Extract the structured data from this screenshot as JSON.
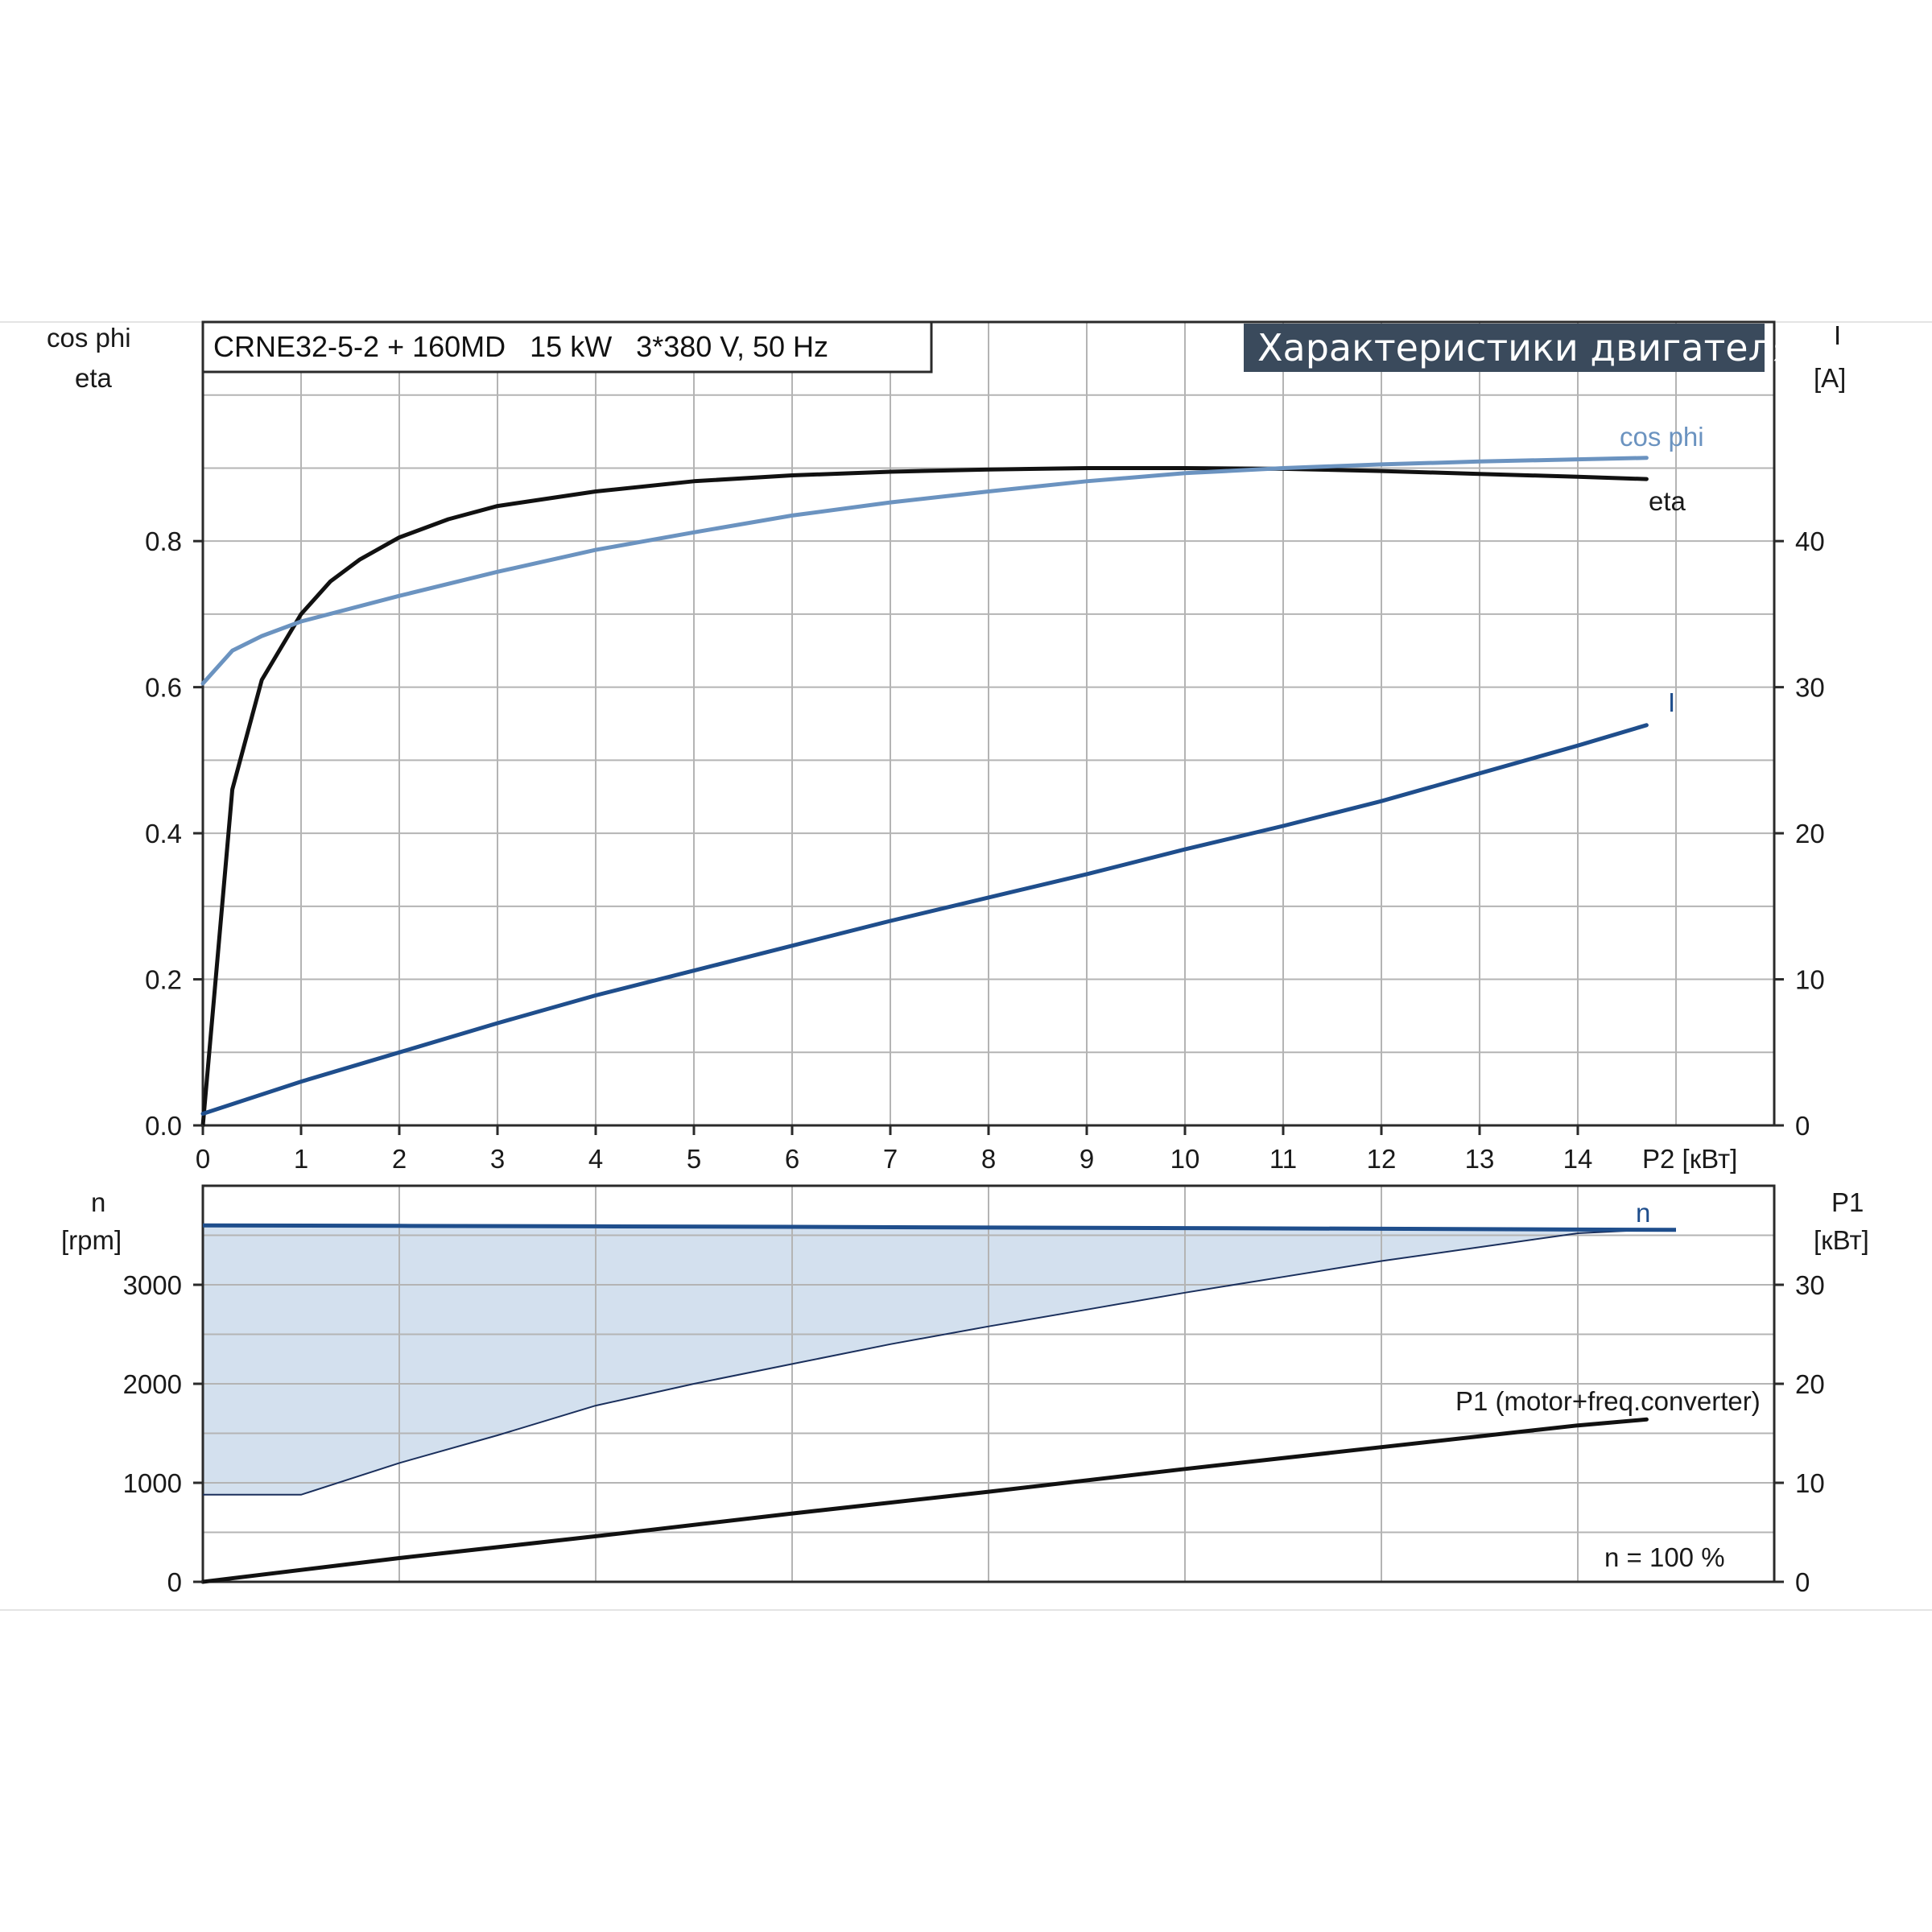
{
  "header": {
    "model": "CRNE32-5-2 + 160MD   15 kW   3*380 V, 50 Hz",
    "title": "Характеристики двигателя"
  },
  "colors": {
    "eta": "#111111",
    "cos_phi": "#6b93c0",
    "current": "#1f4e8c",
    "speed": "#1f4e8c",
    "p1": "#111111",
    "fill": "#d3e0ee",
    "grid": "#b4b4b4",
    "badge": "#3a4a5c"
  },
  "chart_data": [
    {
      "type": "line",
      "panel": "top",
      "xlabel": "P2 [кВт]",
      "xlim": [
        0,
        16
      ],
      "x_ticks": [
        "0",
        "1",
        "2",
        "3",
        "4",
        "5",
        "6",
        "7",
        "8",
        "9",
        "10",
        "11",
        "12",
        "13",
        "14"
      ],
      "y_left_label": [
        "cos phi",
        "eta"
      ],
      "y_left_lim": [
        0,
        1.1
      ],
      "y_left_ticks": [
        "0.0",
        "0.2",
        "0.4",
        "0.6",
        "0.8"
      ],
      "y_right_label": [
        "I",
        "[A]"
      ],
      "y_right_lim": [
        0,
        55
      ],
      "y_right_ticks": [
        "0",
        "10",
        "20",
        "30",
        "40"
      ],
      "grid": true,
      "series": [
        {
          "name": "eta",
          "axis": "left",
          "points": [
            [
              0,
              0
            ],
            [
              0.3,
              0.46
            ],
            [
              0.6,
              0.61
            ],
            [
              1,
              0.7
            ],
            [
              1.3,
              0.745
            ],
            [
              1.6,
              0.775
            ],
            [
              2,
              0.805
            ],
            [
              2.5,
              0.83
            ],
            [
              3,
              0.848
            ],
            [
              4,
              0.868
            ],
            [
              5,
              0.882
            ],
            [
              6,
              0.89
            ],
            [
              7,
              0.895
            ],
            [
              8,
              0.898
            ],
            [
              9,
              0.9
            ],
            [
              10,
              0.9
            ],
            [
              11,
              0.899
            ],
            [
              12,
              0.896
            ],
            [
              13,
              0.892
            ],
            [
              14,
              0.888
            ],
            [
              14.7,
              0.885
            ]
          ]
        },
        {
          "name": "cos phi",
          "axis": "left",
          "points": [
            [
              0,
              0.605
            ],
            [
              0.3,
              0.65
            ],
            [
              0.6,
              0.67
            ],
            [
              1,
              0.69
            ],
            [
              2,
              0.725
            ],
            [
              3,
              0.758
            ],
            [
              4,
              0.788
            ],
            [
              5,
              0.812
            ],
            [
              6,
              0.835
            ],
            [
              7,
              0.853
            ],
            [
              8,
              0.868
            ],
            [
              9,
              0.882
            ],
            [
              10,
              0.893
            ],
            [
              11,
              0.9
            ],
            [
              12,
              0.905
            ],
            [
              13,
              0.909
            ],
            [
              14,
              0.912
            ],
            [
              14.7,
              0.914
            ]
          ]
        },
        {
          "name": "I",
          "axis": "right",
          "points": [
            [
              0,
              0.8
            ],
            [
              1,
              3
            ],
            [
              2,
              5
            ],
            [
              3,
              7
            ],
            [
              4,
              8.9
            ],
            [
              5,
              10.6
            ],
            [
              6,
              12.3
            ],
            [
              7,
              14
            ],
            [
              8,
              15.6
            ],
            [
              9,
              17.2
            ],
            [
              10,
              18.9
            ],
            [
              11,
              20.5
            ],
            [
              12,
              22.2
            ],
            [
              13,
              24.1
            ],
            [
              14,
              26
            ],
            [
              14.7,
              27.4
            ]
          ]
        }
      ]
    },
    {
      "type": "area",
      "panel": "bottom",
      "xlim": [
        0,
        16
      ],
      "y_left_label": [
        "n",
        "[rpm]"
      ],
      "y_left_lim": [
        0,
        4000
      ],
      "y_left_ticks": [
        "0",
        "1000",
        "2000",
        "3000"
      ],
      "y_right_label": [
        "P1",
        "[кВт]"
      ],
      "y_right_lim": [
        0,
        40
      ],
      "y_right_ticks": [
        "0",
        "10",
        "20",
        "30"
      ],
      "note": "n = 100 %",
      "grid": true,
      "series": [
        {
          "name": "n",
          "axis": "left",
          "points": [
            [
              0,
              3600
            ],
            [
              2,
              3595
            ],
            [
              4,
              3590
            ],
            [
              6,
              3585
            ],
            [
              8,
              3578
            ],
            [
              10,
              3572
            ],
            [
              12,
              3566
            ],
            [
              14,
              3558
            ],
            [
              15,
              3555
            ]
          ]
        },
        {
          "name": "n_min",
          "axis": "left",
          "points": [
            [
              0,
              880
            ],
            [
              1,
              880
            ],
            [
              2,
              1200
            ],
            [
              3,
              1480
            ],
            [
              4,
              1780
            ],
            [
              5,
              2000
            ],
            [
              6,
              2200
            ],
            [
              7,
              2400
            ],
            [
              8,
              2580
            ],
            [
              9,
              2750
            ],
            [
              10,
              2920
            ],
            [
              11,
              3080
            ],
            [
              12,
              3240
            ],
            [
              13,
              3380
            ],
            [
              14,
              3520
            ],
            [
              14.7,
              3555
            ]
          ]
        },
        {
          "name": "P1 (motor+freq.converter)",
          "axis": "right",
          "points": [
            [
              0,
              0
            ],
            [
              2,
              2.4
            ],
            [
              4,
              4.6
            ],
            [
              6,
              6.9
            ],
            [
              8,
              9.1
            ],
            [
              10,
              11.4
            ],
            [
              12,
              13.6
            ],
            [
              14,
              15.8
            ],
            [
              14.7,
              16.4
            ]
          ]
        }
      ]
    }
  ],
  "labels": {
    "eta": "eta",
    "cos_phi": "cos phi",
    "I": "I",
    "n": "n",
    "p1": "P1 (motor+freq.converter)"
  }
}
